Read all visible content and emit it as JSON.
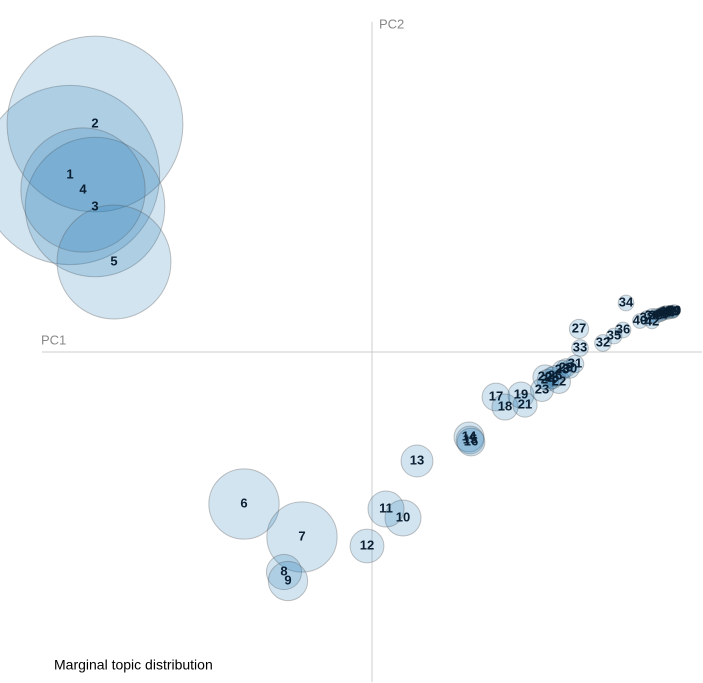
{
  "chart_data": {
    "type": "bubble",
    "x_label": "PC1",
    "y_label": "PC2",
    "size_legend": "Marginal topic distribution",
    "xlim": [
      -330,
      330
    ],
    "ylim": [
      -330,
      330
    ],
    "color": "#1f77b4",
    "series": [
      {
        "labels": [
          "1",
          "2",
          "3",
          "4",
          "5",
          "6",
          "7",
          "8",
          "9",
          "10",
          "11",
          "12",
          "13",
          "14",
          "15",
          "16",
          "17",
          "18",
          "19",
          "20",
          "21",
          "22",
          "23",
          "24",
          "25",
          "26",
          "27",
          "28",
          "29",
          "30",
          "31",
          "32",
          "33",
          "34",
          "35",
          "36",
          "37",
          "38",
          "39",
          "40",
          "41",
          "42",
          "43",
          "44",
          "45",
          "46",
          "47",
          "48",
          "49",
          "50"
        ],
        "x": [
          -302,
          -277,
          -277,
          -289,
          -258,
          -128,
          -70,
          -88,
          -84,
          31,
          14,
          -5,
          45,
          97,
          98,
          99,
          124,
          133,
          149,
          173,
          153,
          187,
          170,
          176,
          180,
          183,
          207,
          190,
          194,
          198,
          203,
          231,
          208,
          254,
          242,
          251,
          275,
          280,
          284,
          268,
          288,
          280,
          290,
          292,
          294,
          296,
          298,
          300,
          301,
          302
        ],
        "y": [
          177,
          228,
          145,
          162,
          90,
          -152,
          -185,
          -220,
          -229,
          -166,
          -157,
          -194,
          -109,
          -85,
          -88,
          -90,
          -45,
          -55,
          -43,
          -25,
          -53,
          -30,
          -38,
          -28,
          -26,
          -24,
          23,
          -18,
          -16,
          -17,
          -12,
          9,
          4,
          49,
          16,
          22,
          34,
          36,
          36,
          31,
          37,
          30,
          38,
          39,
          40,
          39,
          40,
          40,
          40,
          41
        ],
        "sizes": [
          10.4,
          10,
          6.3,
          5,
          4.2,
          1.6,
          1.6,
          0.4,
          0.5,
          0.42,
          0.42,
          0.37,
          0.33,
          0.29,
          0.25,
          0.25,
          0.25,
          0.22,
          0.22,
          0.19,
          0.19,
          0.17,
          0.17,
          0.15,
          0.15,
          0.14,
          0.12,
          0.12,
          0.11,
          0.11,
          0.1,
          0.09,
          0.09,
          0.08,
          0.08,
          0.08,
          0.07,
          0.07,
          0.07,
          0.07,
          0.06,
          0.06,
          0.06,
          0.06,
          0.05,
          0.05,
          0.05,
          0.05,
          0.05,
          0.05
        ]
      }
    ]
  }
}
